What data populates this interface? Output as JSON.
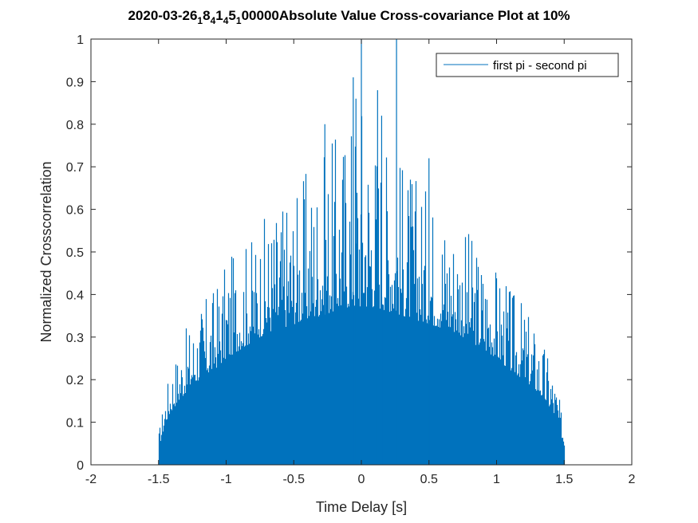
{
  "chart_data": {
    "type": "bar",
    "title_parts": [
      {
        "text": "2020-03-26",
        "sub": false
      },
      {
        "text": "1",
        "sub": true
      },
      {
        "text": "8",
        "sub": false
      },
      {
        "text": "4",
        "sub": true
      },
      {
        "text": "1",
        "sub": false
      },
      {
        "text": "4",
        "sub": true
      },
      {
        "text": "5",
        "sub": false
      },
      {
        "text": "1",
        "sub": true
      },
      {
        "text": "00000Absolute Value Cross-covariance Plot at 10%",
        "sub": false
      }
    ],
    "xlabel": "Time Delay [s]",
    "ylabel": "Normalized Crosscorrelation",
    "xlim": [
      -2,
      2
    ],
    "ylim": [
      0,
      1
    ],
    "xticks": [
      -2,
      -1.5,
      -1,
      -0.5,
      0,
      0.5,
      1,
      1.5,
      2
    ],
    "xtick_labels": [
      "-2",
      "-1.5",
      "-1",
      "-0.5",
      "0",
      "0.5",
      "1",
      "1.5",
      "2"
    ],
    "yticks": [
      0,
      0.1,
      0.2,
      0.3,
      0.4,
      0.5,
      0.6,
      0.7,
      0.8,
      0.9,
      1
    ],
    "ytick_labels": [
      "0",
      "0.1",
      "0.2",
      "0.3",
      "0.4",
      "0.5",
      "0.6",
      "0.7",
      "0.8",
      "0.9",
      "1"
    ],
    "grid": false,
    "legend_position": "top-right",
    "series": [
      {
        "name": "first pi - second pi",
        "color": "#0072BD",
        "x_range": [
          -1.5,
          1.5
        ],
        "envelope_x": [
          -1.5,
          -1.45,
          -1.4,
          -1.3,
          -1.2,
          -1.1,
          -1.0,
          -0.9,
          -0.8,
          -0.7,
          -0.6,
          -0.5,
          -0.4,
          -0.3,
          -0.2,
          -0.1,
          0.0,
          0.1,
          0.2,
          0.3,
          0.4,
          0.5,
          0.6,
          0.7,
          0.8,
          0.9,
          1.0,
          1.1,
          1.2,
          1.3,
          1.4,
          1.45,
          1.5
        ],
        "envelope_base": [
          0.04,
          0.1,
          0.13,
          0.17,
          0.2,
          0.22,
          0.25,
          0.27,
          0.29,
          0.31,
          0.32,
          0.33,
          0.34,
          0.35,
          0.36,
          0.37,
          0.37,
          0.37,
          0.36,
          0.35,
          0.34,
          0.33,
          0.32,
          0.31,
          0.29,
          0.27,
          0.25,
          0.22,
          0.2,
          0.17,
          0.13,
          0.1,
          0.04
        ],
        "envelope_peak": [
          0.08,
          0.18,
          0.25,
          0.32,
          0.38,
          0.42,
          0.48,
          0.52,
          0.55,
          0.6,
          0.63,
          0.66,
          0.7,
          0.73,
          0.78,
          0.84,
          0.92,
          0.82,
          0.78,
          0.73,
          0.69,
          0.66,
          0.63,
          0.59,
          0.55,
          0.51,
          0.47,
          0.42,
          0.38,
          0.32,
          0.25,
          0.18,
          0.08
        ],
        "spikes": [
          {
            "x": 0.0,
            "y": 1.0
          },
          {
            "x": 0.26,
            "y": 1.0
          },
          {
            "x": -0.27,
            "y": 0.8
          },
          {
            "x": -0.06,
            "y": 0.91
          },
          {
            "x": 0.12,
            "y": 0.88
          },
          {
            "x": 0.15,
            "y": 0.82
          },
          {
            "x": -0.04,
            "y": 0.86
          },
          {
            "x": 0.5,
            "y": 0.72
          }
        ]
      }
    ]
  }
}
